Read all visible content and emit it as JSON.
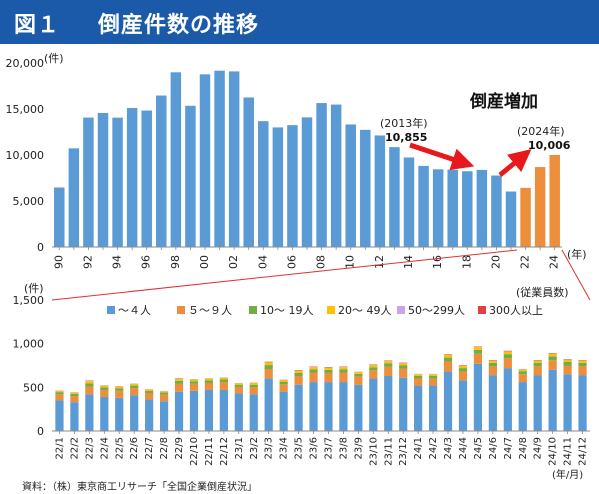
{
  "header": {
    "figure_no": "図１",
    "title": "倒産件数の推移"
  },
  "colors": {
    "header_bg": "#1a5aa8",
    "bar_blue": "#5b9bd5",
    "bar_orange": "#ed8e3c",
    "arrow_red": "#e8191c",
    "connector_red": "#e03030",
    "legend_colors": [
      "#5b9bd5",
      "#ed8e3c",
      "#70ad47",
      "#ffc000",
      "#c9a5e8",
      "#e04040"
    ]
  },
  "chart_data": [
    {
      "type": "bar",
      "ylabel": "(件)",
      "xlabel": "(年)",
      "ylim": [
        0,
        20000
      ],
      "yticks": [
        "0",
        "5,000",
        "10,000",
        "15,000",
        "20,000"
      ],
      "categories": [
        "90",
        "91",
        "92",
        "93",
        "94",
        "95",
        "96",
        "97",
        "98",
        "99",
        "00",
        "01",
        "02",
        "03",
        "04",
        "05",
        "06",
        "07",
        "08",
        "09",
        "10",
        "11",
        "12",
        "13",
        "14",
        "15",
        "16",
        "17",
        "18",
        "19",
        "20",
        "21",
        "22",
        "23",
        "24"
      ],
      "x_tick_labels": [
        "90",
        "92",
        "94",
        "96",
        "98",
        "00",
        "02",
        "04",
        "06",
        "08",
        "10",
        "12",
        "14",
        "16",
        "18",
        "20",
        "22",
        "24"
      ],
      "values": [
        6468,
        10723,
        14069,
        14564,
        14061,
        15108,
        14834,
        16464,
        18988,
        15352,
        18769,
        19164,
        19087,
        16255,
        13679,
        12998,
        13245,
        14091,
        15646,
        15480,
        13321,
        12734,
        12124,
        10855,
        9731,
        8812,
        8446,
        8405,
        8235,
        8383,
        7773,
        6030,
        6428,
        8690,
        10006
      ],
      "highlight_from_index": 32,
      "annotations": {
        "label_2013_year": "(2013年)",
        "label_2013_value": "10,855",
        "label_2024_year": "(2024年)",
        "label_2024_value": "10,006",
        "trend_label": "倒産増加"
      }
    },
    {
      "type": "bar",
      "stacked": true,
      "ylabel": "(件)",
      "xlabel": "(年/月)",
      "legend_title": "(従業員数)",
      "legend_position": "top",
      "ylim": [
        0,
        1500
      ],
      "yticks": [
        "0",
        "500",
        "1,000",
        "1,500"
      ],
      "categories": [
        "22/1",
        "22/2",
        "22/3",
        "22/4",
        "22/5",
        "22/6",
        "22/7",
        "22/8",
        "22/9",
        "22/10",
        "22/11",
        "22/12",
        "23/1",
        "23/2",
        "23/3",
        "23/4",
        "23/5",
        "23/6",
        "23/7",
        "23/8",
        "23/9",
        "23/10",
        "23/11",
        "23/12",
        "24/1",
        "24/2",
        "24/3",
        "24/4",
        "24/5",
        "24/6",
        "24/7",
        "24/8",
        "24/9",
        "24/10",
        "24/11",
        "24/12"
      ],
      "series": [
        {
          "name": "～４人",
          "values": [
            350,
            330,
            420,
            390,
            380,
            410,
            360,
            340,
            450,
            460,
            470,
            470,
            430,
            420,
            600,
            450,
            530,
            560,
            560,
            560,
            530,
            600,
            630,
            610,
            520,
            520,
            680,
            580,
            770,
            640,
            720,
            560,
            640,
            700,
            650,
            640
          ]
        },
        {
          "name": "５～９人",
          "values": [
            70,
            70,
            90,
            80,
            80,
            80,
            75,
            75,
            90,
            80,
            80,
            90,
            75,
            80,
            110,
            85,
            100,
            110,
            105,
            110,
            95,
            95,
            105,
            105,
            80,
            80,
            115,
            100,
            115,
            100,
            115,
            90,
            100,
            110,
            100,
            100
          ]
        },
        {
          "name": "10～ 19人",
          "values": [
            25,
            25,
            35,
            30,
            30,
            30,
            25,
            25,
            35,
            30,
            30,
            30,
            25,
            30,
            45,
            30,
            35,
            35,
            35,
            35,
            30,
            35,
            40,
            35,
            30,
            30,
            45,
            40,
            45,
            40,
            45,
            35,
            40,
            45,
            40,
            40
          ]
        },
        {
          "name": "20～ 49人",
          "values": [
            15,
            15,
            25,
            20,
            20,
            20,
            15,
            15,
            20,
            20,
            20,
            20,
            15,
            20,
            30,
            20,
            25,
            25,
            25,
            25,
            20,
            25,
            25,
            25,
            20,
            20,
            30,
            25,
            30,
            25,
            30,
            20,
            25,
            30,
            25,
            25
          ]
        },
        {
          "name": "50～299人",
          "values": [
            5,
            5,
            6,
            5,
            5,
            5,
            5,
            5,
            6,
            5,
            5,
            5,
            5,
            5,
            7,
            5,
            6,
            6,
            6,
            6,
            5,
            6,
            6,
            6,
            5,
            5,
            7,
            6,
            7,
            6,
            7,
            5,
            6,
            7,
            6,
            6
          ]
        },
        {
          "name": "300人以上",
          "values": [
            0,
            0,
            1,
            0,
            0,
            0,
            0,
            0,
            1,
            0,
            0,
            0,
            0,
            0,
            1,
            0,
            1,
            1,
            1,
            1,
            0,
            1,
            1,
            1,
            0,
            0,
            1,
            1,
            1,
            1,
            1,
            0,
            1,
            1,
            1,
            1
          ]
        }
      ]
    }
  ],
  "source": "資料：（株）東京商工リサーチ「全国企業倒産状況」"
}
